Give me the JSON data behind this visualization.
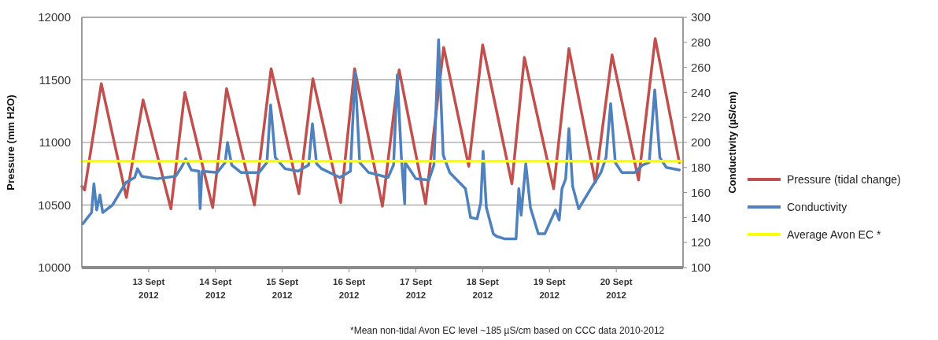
{
  "chart_data": {
    "type": "line",
    "ylabel": "Pressure (mm H2O)",
    "y2label": "Conductivity (µS/cm)",
    "xlim": [
      "2012-09-12T00:00",
      "2012-09-21T00:00"
    ],
    "xticks": [
      {
        "value": "2012-09-13",
        "label": "13 Sept\n2012"
      },
      {
        "value": "2012-09-14",
        "label": "14 Sept\n2012"
      },
      {
        "value": "2012-09-15",
        "label": "15 Sept\n2012"
      },
      {
        "value": "2012-09-16",
        "label": "16 Sept\n2012"
      },
      {
        "value": "2012-09-17",
        "label": "17 Sept\n2012"
      },
      {
        "value": "2012-09-18",
        "label": "18 Sept\n2012"
      },
      {
        "value": "2012-09-19",
        "label": "19 Sept\n2012"
      },
      {
        "value": "2012-09-20",
        "label": "20 Sept\n2012"
      }
    ],
    "ylim": [
      10000,
      12000
    ],
    "yticks": [
      10000,
      10500,
      11000,
      11500,
      12000
    ],
    "y2lim": [
      100,
      300
    ],
    "y2ticks": [
      100,
      120,
      140,
      160,
      180,
      200,
      220,
      240,
      260,
      280,
      300
    ],
    "grid": "y",
    "legend": "right",
    "marker": "none",
    "line_style": "solid",
    "annotations": [
      "*Mean non-tidal Avon EC level ~185 µS/cm based on CCC data 2010-2012"
    ],
    "series": [
      {
        "name": "Pressure (tidal change)",
        "color": "#c0504d",
        "x": [
          "2012-09-12T00:00",
          "2012-09-12T01:00",
          "2012-09-12T07:00",
          "2012-09-12T16:00",
          "2012-09-12T22:00",
          "2012-09-13T08:00",
          "2012-09-13T13:00",
          "2012-09-13T23:00",
          "2012-09-14T04:00",
          "2012-09-14T14:00",
          "2012-09-14T20:00",
          "2012-09-15T06:00",
          "2012-09-15T11:00",
          "2012-09-15T21:00",
          "2012-09-16T02:00",
          "2012-09-16T12:00",
          "2012-09-16T18:00",
          "2012-09-17T03:30",
          "2012-09-17T10:00",
          "2012-09-17T19:00",
          "2012-09-18T00:00",
          "2012-09-18T10:30",
          "2012-09-18T15:00",
          "2012-09-19T01:30",
          "2012-09-19T07:00",
          "2012-09-19T16:30",
          "2012-09-19T22:30",
          "2012-09-20T08:00",
          "2012-09-20T14:00",
          "2012-09-20T22:40"
        ],
        "values": [
          10650,
          10620,
          11470,
          10560,
          11340,
          10470,
          11400,
          10480,
          11430,
          10500,
          11590,
          10590,
          11510,
          10520,
          11590,
          10490,
          11580,
          10510,
          11760,
          10810,
          11780,
          10670,
          11680,
          10630,
          11750,
          10680,
          11700,
          10700,
          11830,
          10840
        ]
      },
      {
        "name": "Conductivity",
        "color": "#4f81bd",
        "axis": "y2",
        "x": [
          "2012-09-12T00:20",
          "2012-09-12T03:30",
          "2012-09-12T04:20",
          "2012-09-12T05:20",
          "2012-09-12T06:30",
          "2012-09-12T07:30",
          "2012-09-12T11:00",
          "2012-09-12T15:50",
          "2012-09-12T19:00",
          "2012-09-12T20:00",
          "2012-09-12T21:30",
          "2012-09-13T03:00",
          "2012-09-13T09:40",
          "2012-09-13T12:00",
          "2012-09-13T13:20",
          "2012-09-13T15:20",
          "2012-09-13T18:00",
          "2012-09-13T18:30",
          "2012-09-13T19:10",
          "2012-09-14T00:40",
          "2012-09-14T03:30",
          "2012-09-14T04:20",
          "2012-09-14T05:50",
          "2012-09-14T09:10",
          "2012-09-14T15:40",
          "2012-09-14T18:30",
          "2012-09-14T19:50",
          "2012-09-14T21:30",
          "2012-09-15T01:00",
          "2012-09-15T05:40",
          "2012-09-15T09:30",
          "2012-09-15T10:50",
          "2012-09-15T12:20",
          "2012-09-15T14:10",
          "2012-09-15T20:40",
          "2012-09-16T00:30",
          "2012-09-16T02:10",
          "2012-09-16T03:50",
          "2012-09-16T07:00",
          "2012-09-16T14:00",
          "2012-09-16T16:00",
          "2012-09-16T17:20",
          "2012-09-16T18:50",
          "2012-09-16T20:00",
          "2012-09-16T20:10",
          "2012-09-17T00:00",
          "2012-09-17T04:40",
          "2012-09-17T06:30",
          "2012-09-17T08:10",
          "2012-09-17T09:50",
          "2012-09-17T12:10",
          "2012-09-17T17:50",
          "2012-09-17T19:40",
          "2012-09-17T22:00",
          "2012-09-17T23:20",
          "2012-09-18T00:10",
          "2012-09-18T01:20",
          "2012-09-18T03:50",
          "2012-09-18T05:00",
          "2012-09-18T07:50",
          "2012-09-18T12:00",
          "2012-09-18T13:00",
          "2012-09-18T13:50",
          "2012-09-18T15:30",
          "2012-09-18T17:10",
          "2012-09-18T20:00",
          "2012-09-18T22:20",
          "2012-09-19T02:10",
          "2012-09-19T03:30",
          "2012-09-19T04:30",
          "2012-09-19T05:50",
          "2012-09-19T07:00",
          "2012-09-19T08:20",
          "2012-09-19T10:30",
          "2012-09-19T14:50",
          "2012-09-19T18:30",
          "2012-09-19T20:20",
          "2012-09-19T22:00",
          "2012-09-19T23:40",
          "2012-09-20T02:00",
          "2012-09-20T06:40",
          "2012-09-20T09:30",
          "2012-09-20T11:50",
          "2012-09-20T13:50",
          "2012-09-20T15:40",
          "2012-09-20T18:00",
          "2012-09-20T22:40"
        ],
        "values": [
          135,
          144,
          167,
          146,
          158,
          144,
          150,
          168,
          172,
          179,
          173,
          171,
          173,
          181,
          187,
          178,
          177,
          147,
          177,
          176,
          184,
          200,
          182,
          176,
          176,
          184,
          230,
          188,
          179,
          177,
          182,
          215,
          183,
          179,
          172,
          177,
          256,
          184,
          176,
          172,
          182,
          254,
          187,
          151,
          184,
          171,
          170,
          182,
          282,
          190,
          176,
          163,
          140,
          139,
          152,
          193,
          148,
          127,
          125,
          123,
          123,
          163,
          142,
          183,
          148,
          127,
          127,
          146,
          138,
          163,
          171,
          211,
          165,
          147,
          163,
          176,
          188,
          231,
          184,
          176,
          176,
          182,
          184,
          242,
          188,
          180,
          178
        ]
      },
      {
        "name": "Average Avon EC *",
        "color": "#ffff00",
        "axis": "y2",
        "x": [
          "2012-09-12T00:00",
          "2012-09-21T00:00"
        ],
        "values": [
          185,
          185
        ]
      }
    ]
  }
}
